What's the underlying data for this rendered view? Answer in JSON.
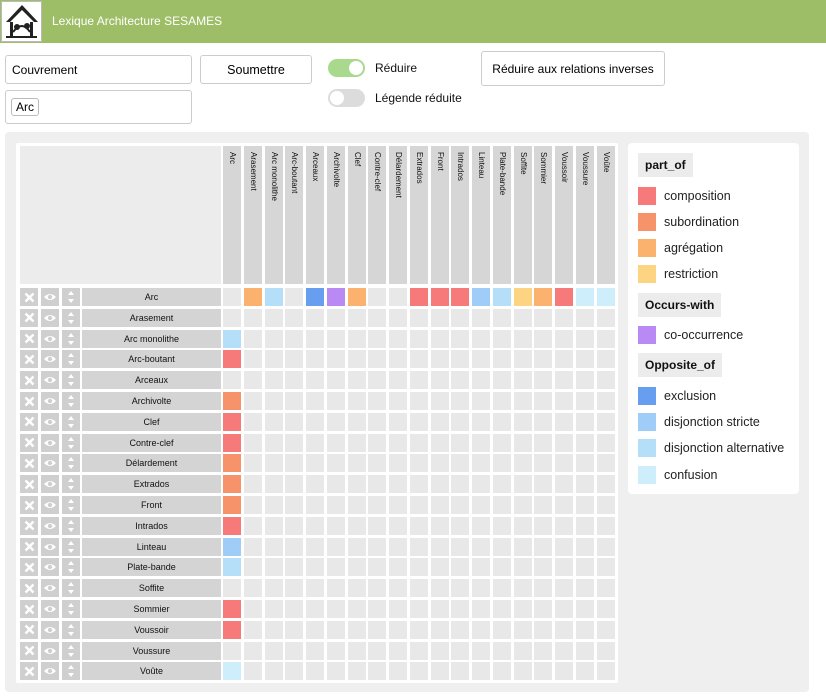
{
  "header": {
    "title": "Lexique Architecture SESAMES"
  },
  "form": {
    "search_value": "Couvrement",
    "filter_chip": "Arc",
    "submit_label": "Soumettre",
    "reduce_label": "Réduire",
    "reduce_on": true,
    "legend_reduced_label": "Légende réduite",
    "legend_reduced_on": false,
    "inverse_button_label": "Réduire aux relations inverses"
  },
  "colors": {
    "composition": "#f77a7a",
    "subordination": "#f7936b",
    "agregation": "#fbb26e",
    "restriction": "#fdd582",
    "co_occurrence": "#b98af4",
    "exclusion": "#679ef0",
    "disjonction_stricte": "#9fcdf8",
    "disjonction_alternative": "#b5def8",
    "confusion": "#cfeefc"
  },
  "matrix": {
    "columns": [
      "Arc",
      "Arasement",
      "Arc monolithe",
      "Arc-boutant",
      "Arceaux",
      "Archivolte",
      "Clef",
      "Contre-clef",
      "Délardement",
      "Extrados",
      "Front",
      "Intrados",
      "Linteau",
      "Plate-bande",
      "Soffite",
      "Sommier",
      "Voussoir",
      "Voussure",
      "Voûte"
    ],
    "rows": [
      "Arc",
      "Arasement",
      "Arc monolithe",
      "Arc-boutant",
      "Arceaux",
      "Archivolte",
      "Clef",
      "Contre-clef",
      "Délardement",
      "Extrados",
      "Front",
      "Intrados",
      "Linteau",
      "Plate-bande",
      "Soffite",
      "Sommier",
      "Voussoir",
      "Voussure",
      "Voûte"
    ],
    "first_row_relations": [
      null,
      "agregation",
      "disjonction_alternative",
      null,
      "exclusion",
      "co_occurrence",
      "agregation",
      null,
      null,
      "composition",
      "composition",
      "composition",
      "disjonction_stricte",
      "disjonction_alternative",
      "restriction",
      "agregation",
      "composition",
      "confusion",
      "confusion"
    ],
    "first_col_relations": [
      null,
      null,
      "disjonction_alternative",
      "composition",
      null,
      "subordination",
      "composition",
      "composition",
      "subordination",
      "subordination",
      "subordination",
      "composition",
      "disjonction_stricte",
      "disjonction_alternative",
      null,
      "composition",
      "composition",
      null,
      "confusion"
    ]
  },
  "legend": {
    "groups": [
      {
        "title": "part_of",
        "items": [
          {
            "label": "composition",
            "color": "#f77a7a"
          },
          {
            "label": "subordination",
            "color": "#f7936b"
          },
          {
            "label": "agrégation",
            "color": "#fbb26e"
          },
          {
            "label": "restriction",
            "color": "#fdd582"
          }
        ]
      },
      {
        "title": "Occurs-with",
        "items": [
          {
            "label": "co-occurrence",
            "color": "#b98af4"
          }
        ]
      },
      {
        "title": "Opposite_of",
        "items": [
          {
            "label": "exclusion",
            "color": "#679ef0"
          },
          {
            "label": "disjonction stricte",
            "color": "#9fcdf8"
          },
          {
            "label": "disjonction alternative",
            "color": "#b5def8"
          },
          {
            "label": "confusion",
            "color": "#cfeefc"
          }
        ]
      }
    ]
  }
}
